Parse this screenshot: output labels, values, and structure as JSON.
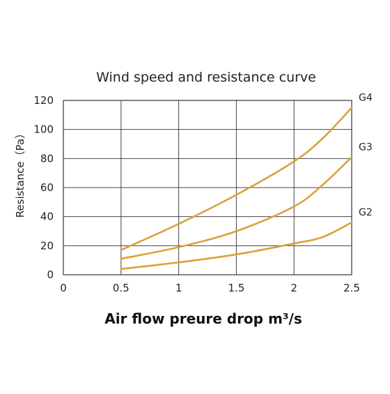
{
  "chart_data": {
    "type": "line",
    "title": "Wind speed and resistance curve",
    "xlabel": "Air flow preure drop m³/s",
    "ylabel": "Resistance（Pa）",
    "xlim": [
      0,
      2.5
    ],
    "ylim": [
      0,
      120
    ],
    "xticks": [
      "0",
      "0.5",
      "1",
      "1.5",
      "2",
      "2.5"
    ],
    "yticks": [
      "0",
      "20",
      "40",
      "60",
      "80",
      "100",
      "120"
    ],
    "grid": true,
    "line_color": "#d9a23a",
    "series": [
      {
        "name": "G4",
        "x": [
          0.5,
          1.0,
          1.5,
          2.0,
          2.25,
          2.5
        ],
        "y": [
          17,
          35,
          55,
          78,
          94,
          115
        ]
      },
      {
        "name": "G3",
        "x": [
          0.5,
          1.0,
          1.5,
          2.0,
          2.25,
          2.5
        ],
        "y": [
          11,
          19,
          30,
          47,
          62,
          81
        ]
      },
      {
        "name": "G2",
        "x": [
          0.5,
          1.0,
          1.5,
          2.0,
          2.25,
          2.5
        ],
        "y": [
          4,
          8.5,
          14,
          21.5,
          26,
          36
        ]
      }
    ]
  }
}
